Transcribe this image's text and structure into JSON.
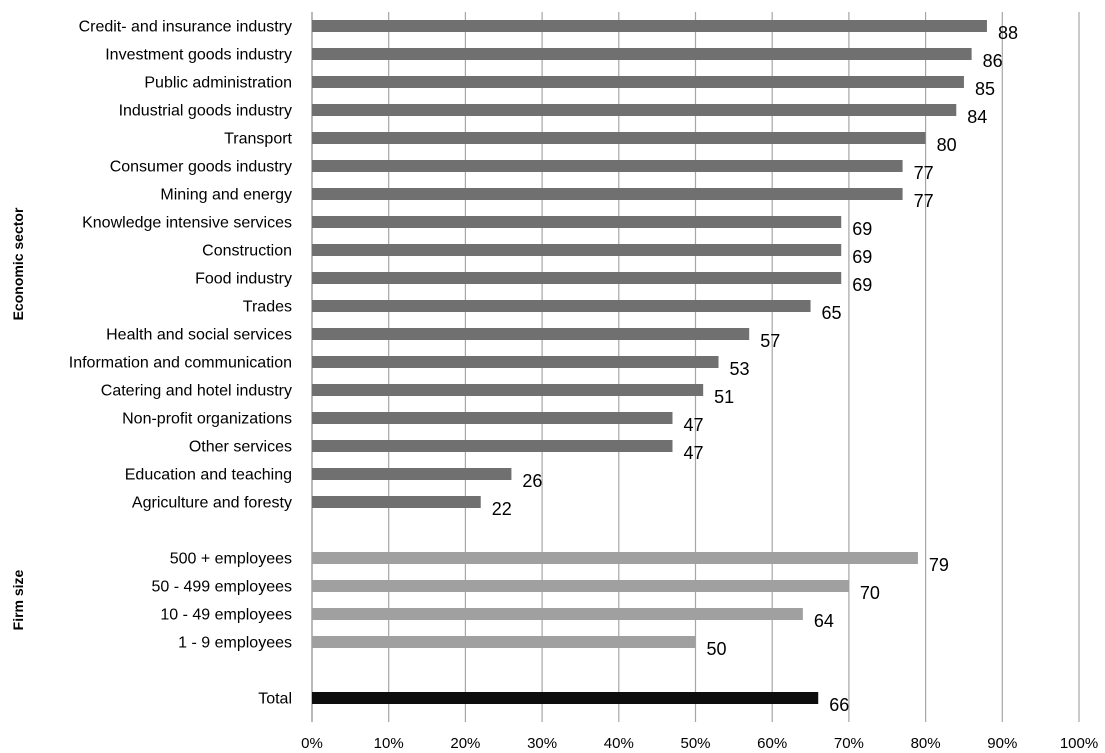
{
  "chart_data": {
    "type": "bar",
    "orientation": "horizontal",
    "xlim": [
      0,
      100
    ],
    "xticks": [
      "0%",
      "10%",
      "20%",
      "30%",
      "40%",
      "50%",
      "60%",
      "70%",
      "80%",
      "90%",
      "100%"
    ],
    "grid": true,
    "legend": "none",
    "groups": [
      {
        "name": "Economic sector",
        "color": "#707070",
        "categories": [
          "Credit- and insurance industry",
          "Investment goods industry",
          "Public administration",
          "Industrial goods industry",
          "Transport",
          "Consumer goods industry",
          "Mining and energy",
          "Knowledge intensive services",
          "Construction",
          "Food industry",
          "Trades",
          "Health and social services",
          "Information and communication",
          "Catering and hotel industry",
          "Non-profit organizations",
          "Other services",
          "Education and teaching",
          "Agriculture and foresty"
        ],
        "values": [
          88,
          86,
          85,
          84,
          80,
          77,
          77,
          69,
          69,
          69,
          65,
          57,
          53,
          51,
          47,
          47,
          26,
          22
        ]
      },
      {
        "name": "Firm size",
        "color": "#a0a0a0",
        "categories": [
          "500 + employees",
          "50 - 499 employees",
          "10 - 49 employees",
          "1 - 9 employees"
        ],
        "values": [
          79,
          70,
          64,
          50
        ]
      },
      {
        "name": "",
        "color": "#0d0d0d",
        "categories": [
          "Total"
        ],
        "values": [
          66
        ]
      }
    ]
  }
}
